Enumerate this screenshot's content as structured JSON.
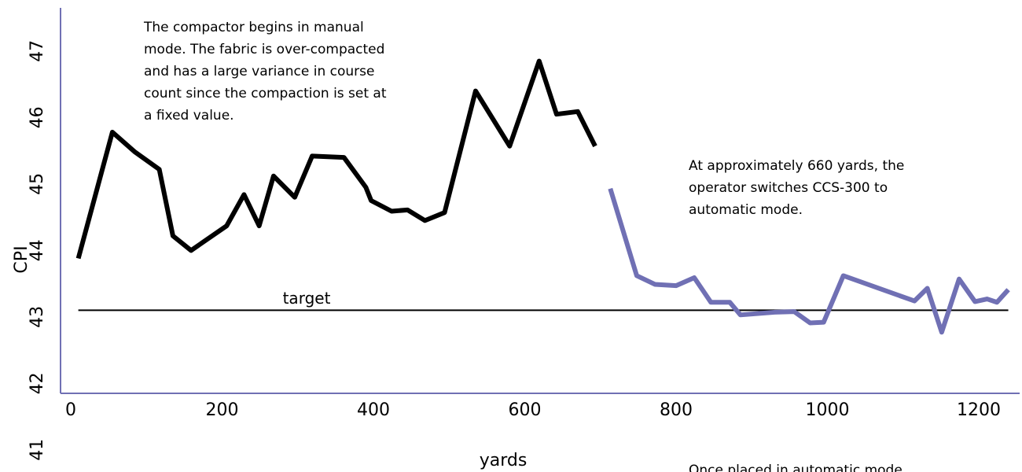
{
  "chart_data": {
    "type": "line",
    "x_label": "yards",
    "y_label": "CPI",
    "xlim": [
      -13.5,
      1254
    ],
    "ylim": [
      41.85,
      47.65
    ],
    "xticks": [
      0,
      200,
      400,
      600,
      800,
      1000,
      1200
    ],
    "yticks": [
      41,
      42,
      43,
      44,
      45,
      46,
      47
    ],
    "target": {
      "label": "target",
      "value": 43.1,
      "x": [
        10,
        1239
      ],
      "color": "#000000"
    },
    "series": [
      {
        "color": "#000000",
        "x": [
          10,
          55,
          85,
          117,
          135,
          159,
          206,
          229,
          249,
          268,
          296,
          319,
          361,
          390,
          397,
          424,
          445,
          468,
          494,
          535,
          580,
          619,
          642,
          670,
          693
        ],
        "values": [
          43.88,
          45.78,
          45.48,
          45.22,
          44.22,
          44.0,
          44.37,
          44.84,
          44.37,
          45.12,
          44.8,
          45.42,
          45.4,
          44.95,
          44.75,
          44.59,
          44.61,
          44.45,
          44.57,
          46.4,
          45.57,
          46.85,
          46.05,
          46.09,
          45.57
        ]
      },
      {
        "color": "#7070b4",
        "x": [
          713,
          748,
          772,
          800,
          824,
          846,
          871,
          885,
          930,
          956,
          977,
          995,
          1021,
          1115,
          1132,
          1151,
          1174,
          1195,
          1211,
          1224,
          1239
        ],
        "values": [
          44.93,
          43.62,
          43.49,
          43.47,
          43.59,
          43.22,
          43.22,
          43.03,
          43.07,
          43.08,
          42.91,
          42.92,
          43.62,
          43.24,
          43.43,
          42.77,
          43.57,
          43.23,
          43.27,
          43.22,
          43.41
        ]
      }
    ],
    "annotations": [
      {
        "lines": [
          "The compactor begins in manual",
          "mode. The fabric is over-compacted",
          "and has a large variance in course",
          "count since the compaction is set at",
          "a fixed value."
        ]
      },
      {
        "lines": [
          "At approximately 660 yards, the",
          "operator switches CCS-300 to",
          "automatic mode."
        ]
      },
      {
        "lines": [
          "Once placed in automatic mode,"
        ]
      }
    ]
  }
}
